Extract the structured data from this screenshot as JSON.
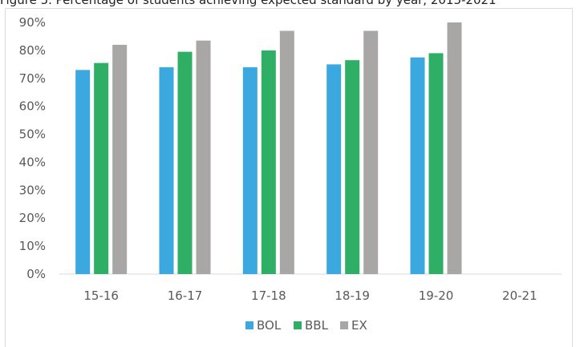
{
  "header": {
    "caption": "Figure 5. Percentage of students achieving expected standard by year, 2015-2021"
  },
  "colors": {
    "BOL": "#3ba9e0",
    "BBL": "#2faf66",
    "EX": "#a8a7a6",
    "grid": "#d9d9d9",
    "axis": "#d9d9d9"
  },
  "chart_data": {
    "type": "bar",
    "title": "",
    "xlabel": "",
    "ylabel": "",
    "categories": [
      "15-16",
      "16-17",
      "17-18",
      "18-19",
      "19-20",
      "20-21"
    ],
    "ylim": [
      0,
      90
    ],
    "y_ticks": [
      "0%",
      "10%",
      "20%",
      "30%",
      "40%",
      "50%",
      "60%",
      "70%",
      "80%",
      "90%"
    ],
    "grid": false,
    "legend_position": "bottom",
    "series": [
      {
        "name": "BOL",
        "values": [
          73,
          74,
          74,
          75,
          77.5,
          null
        ]
      },
      {
        "name": "BBL",
        "values": [
          75.5,
          79.5,
          80,
          76.5,
          79,
          null
        ]
      },
      {
        "name": "EX",
        "values": [
          82,
          83.5,
          87,
          87,
          90,
          null
        ]
      }
    ]
  }
}
